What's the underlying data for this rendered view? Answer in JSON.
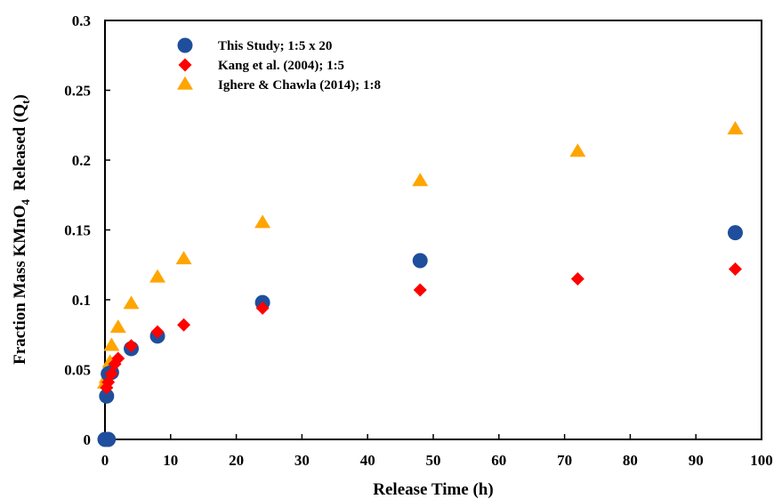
{
  "chart_data": {
    "type": "scatter",
    "title": "",
    "xlabel": "Release Time (h)",
    "ylabel": {
      "prefix": "Fraction Mass KMnO",
      "sub1": "4",
      "middle": "  Released (Q",
      "sub2": "t",
      "suffix": ")"
    },
    "xlim": [
      0,
      100
    ],
    "ylim": [
      0,
      0.3
    ],
    "x_ticks": [
      0,
      10,
      20,
      30,
      40,
      50,
      60,
      70,
      80,
      90,
      100
    ],
    "y_ticks": [
      0,
      0.05,
      0.1,
      0.15,
      0.2,
      0.25,
      0.3
    ],
    "y_tick_labels": [
      "0",
      "0.05",
      "0.1",
      "0.15",
      "0.2",
      "0.25",
      "0.3"
    ],
    "grid": false,
    "legend_position": "top-left",
    "series": [
      {
        "name": "This Study; 1:5 x 20",
        "marker": "circle",
        "color": "#1f4e9c",
        "points": [
          [
            0,
            0
          ],
          [
            0.5,
            0
          ],
          [
            0.25,
            0.031
          ],
          [
            0.5,
            0.047
          ],
          [
            1,
            0.048
          ],
          [
            4,
            0.065
          ],
          [
            8,
            0.074
          ],
          [
            24,
            0.098
          ],
          [
            48,
            0.128
          ],
          [
            96,
            0.148
          ]
        ]
      },
      {
        "name": "Kang et al. (2004); 1:5",
        "marker": "diamond",
        "color": "#ff0000",
        "points": [
          [
            0.25,
            0.037
          ],
          [
            0.5,
            0.041
          ],
          [
            1,
            0.047
          ],
          [
            1.5,
            0.054
          ],
          [
            2,
            0.058
          ],
          [
            4,
            0.067
          ],
          [
            8,
            0.077
          ],
          [
            12,
            0.082
          ],
          [
            24,
            0.094
          ],
          [
            48,
            0.107
          ],
          [
            72,
            0.115
          ],
          [
            96,
            0.122
          ]
        ]
      },
      {
        "name": "Ighere & Chawla (2014); 1:8",
        "marker": "triangle",
        "color": "#ffa500",
        "points": [
          [
            0,
            0.04
          ],
          [
            0.25,
            0.044
          ],
          [
            0.5,
            0.05
          ],
          [
            0.75,
            0.055
          ],
          [
            1,
            0.067
          ],
          [
            2,
            0.08
          ],
          [
            4,
            0.097
          ],
          [
            8,
            0.116
          ],
          [
            12,
            0.129
          ],
          [
            24,
            0.155
          ],
          [
            48,
            0.185
          ],
          [
            72,
            0.206
          ],
          [
            96,
            0.222
          ]
        ]
      }
    ]
  }
}
